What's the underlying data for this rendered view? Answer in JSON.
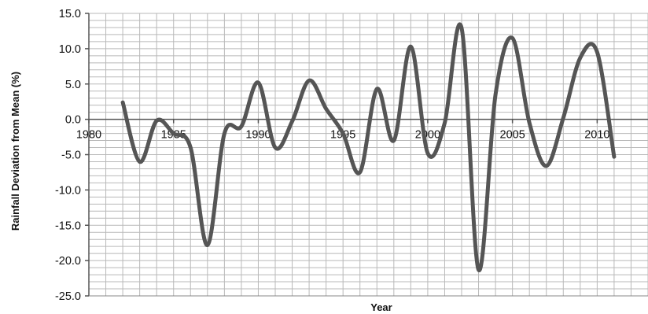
{
  "chart_data": {
    "type": "line",
    "title": "",
    "xlabel": "Year",
    "ylabel": "Rainfall Deviation from Mean (%)",
    "xlim": [
      1980,
      2013
    ],
    "ylim": [
      -25,
      15
    ],
    "x_ticks": [
      1980,
      1985,
      1990,
      1995,
      2000,
      2005,
      2010
    ],
    "x_tick_labels": [
      "1980",
      "1985",
      "1990",
      "1995",
      "2000",
      "2005",
      "2010"
    ],
    "y_ticks": [
      15,
      10,
      5,
      0,
      -5,
      -10,
      -15,
      -20,
      -25
    ],
    "y_tick_labels": [
      "15.0",
      "10.0",
      "5.0",
      "0.0",
      "-5.0",
      "-10.0",
      "-15.0",
      "-20.0",
      "-25.0"
    ],
    "grid": true,
    "legend": "none",
    "line_color": "#555555",
    "grid_color": "#b9b9b9",
    "series": [
      {
        "x": [
          1982,
          1983,
          1984,
          1985,
          1986,
          1987,
          1988,
          1989,
          1990,
          1991,
          1992,
          1993,
          1994,
          1995,
          1996,
          1997,
          1998,
          1999,
          2000,
          2001,
          2002,
          2003,
          2004,
          2005,
          2006,
          2007,
          2008,
          2009,
          2010,
          2011
        ],
        "values": [
          2.4,
          -6.0,
          -0.2,
          -2.0,
          -4.0,
          -17.8,
          -2.0,
          -1.0,
          5.2,
          -4.0,
          -0.3,
          5.5,
          1.5,
          -2.0,
          -7.5,
          4.3,
          -3.0,
          10.3,
          -4.8,
          -0.5,
          12.9,
          -21.3,
          3.5,
          11.5,
          -0.5,
          -6.6,
          0.2,
          8.7,
          9.5,
          -5.3
        ]
      }
    ]
  }
}
